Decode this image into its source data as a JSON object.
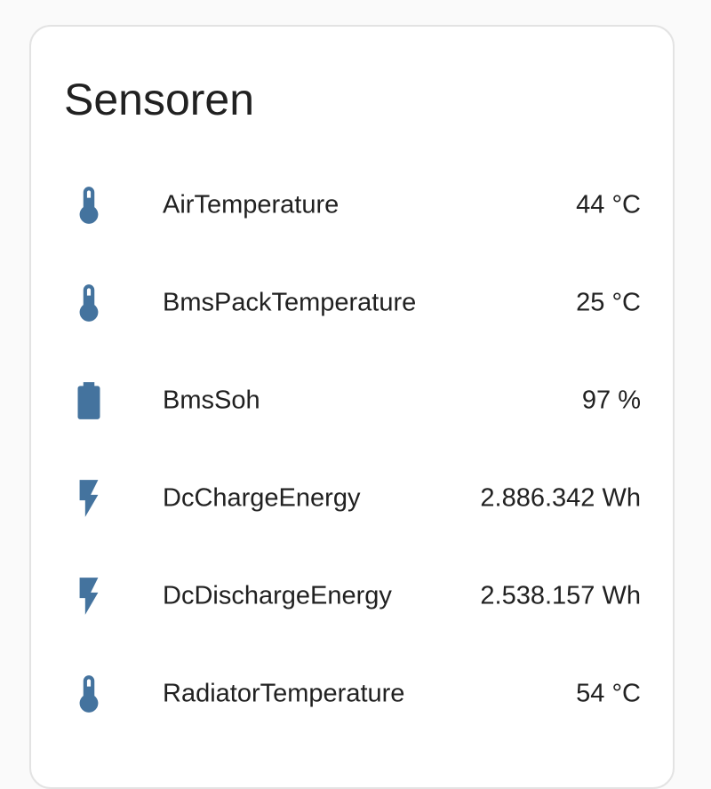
{
  "card": {
    "title": "Sensoren"
  },
  "theme": {
    "icon_color": "#44739e",
    "text_color": "#212121",
    "card_background": "#ffffff",
    "page_background": "#fafafa"
  },
  "entities": [
    {
      "name": "AirTemperature",
      "state": "44 °C",
      "icon": "thermometer-icon"
    },
    {
      "name": "BmsPackTemperature",
      "state": "25 °C",
      "icon": "thermometer-icon"
    },
    {
      "name": "BmsSoh",
      "state": "97 %",
      "icon": "battery-icon"
    },
    {
      "name": "DcChargeEnergy",
      "state": "2.886.342 Wh",
      "icon": "flash-icon"
    },
    {
      "name": "DcDischargeEnergy",
      "state": "2.538.157 Wh",
      "icon": "flash-icon"
    },
    {
      "name": "RadiatorTemperature",
      "state": "54 °C",
      "icon": "thermometer-icon"
    }
  ]
}
